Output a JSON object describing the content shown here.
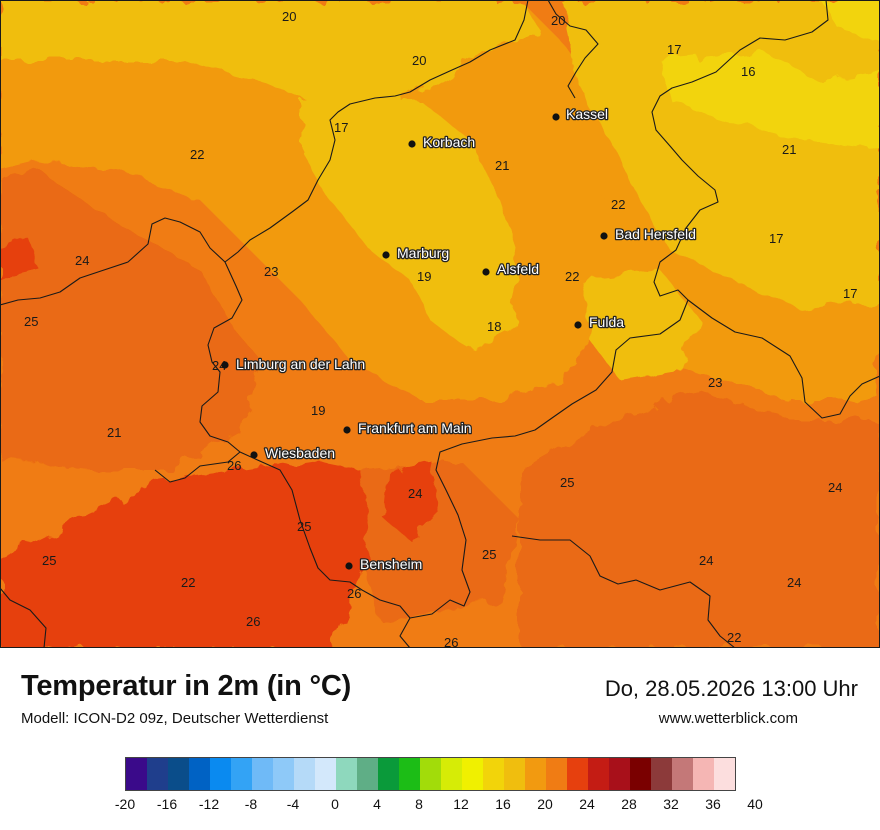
{
  "title": "Temperatur in 2m (in °C)",
  "model": "Modell: ICON-D2 09z, Deutscher Wetterdienst",
  "datetime": "Do, 28.05.2026 13:00 Uhr",
  "website": "www.wetterblick.com",
  "colors": {
    "t16": "#f2d40a",
    "t18": "#f0be0e",
    "t20": "#f29a10",
    "t22": "#f07c14",
    "t24": "#ea6a12",
    "t26": "#e6400e",
    "border": "#1a1a1a"
  },
  "cities": [
    {
      "name": "Kassel"
    },
    {
      "name": "Korbach"
    },
    {
      "name": "Bad Hersfeld"
    },
    {
      "name": "Marburg"
    },
    {
      "name": "Alsfeld"
    },
    {
      "name": "Fulda"
    },
    {
      "name": "Limburg an der Lahn"
    },
    {
      "name": "Frankfurt am Main"
    },
    {
      "name": "Wiesbaden"
    },
    {
      "name": "Bensheim"
    }
  ],
  "values": [
    "20",
    "20",
    "20",
    "17",
    "16",
    "17",
    "21",
    "22",
    "21",
    "22",
    "24",
    "23",
    "19",
    "22",
    "17",
    "17",
    "25",
    "18",
    "24",
    "23",
    "19",
    "21",
    "26",
    "24",
    "25",
    "25",
    "24",
    "25",
    "25",
    "24",
    "24",
    "22",
    "26",
    "26",
    "22",
    "26"
  ],
  "scale": {
    "colors": [
      "#3a0a8a",
      "#1f3e8c",
      "#0a4d8a",
      "#0062c4",
      "#0a8af0",
      "#33a3f5",
      "#6fbaf7",
      "#8ec9f8",
      "#b5daf8",
      "#d3e8fb",
      "#8ed8bd",
      "#5fae86",
      "#0a9a3a",
      "#1cbd16",
      "#a2dc0a",
      "#d6ec06",
      "#f0f000",
      "#f2d40a",
      "#f0be0e",
      "#f29a10",
      "#f07c14",
      "#e6400e",
      "#c41c14",
      "#a8101a",
      "#7a0000",
      "#8c3a3a",
      "#c47878",
      "#f5b6b4",
      "#fcdede"
    ],
    "ticks": [
      "-20",
      "-16",
      "-12",
      "-8",
      "-4",
      "0",
      "4",
      "8",
      "12",
      "16",
      "20",
      "24",
      "28",
      "32",
      "36",
      "40"
    ]
  }
}
